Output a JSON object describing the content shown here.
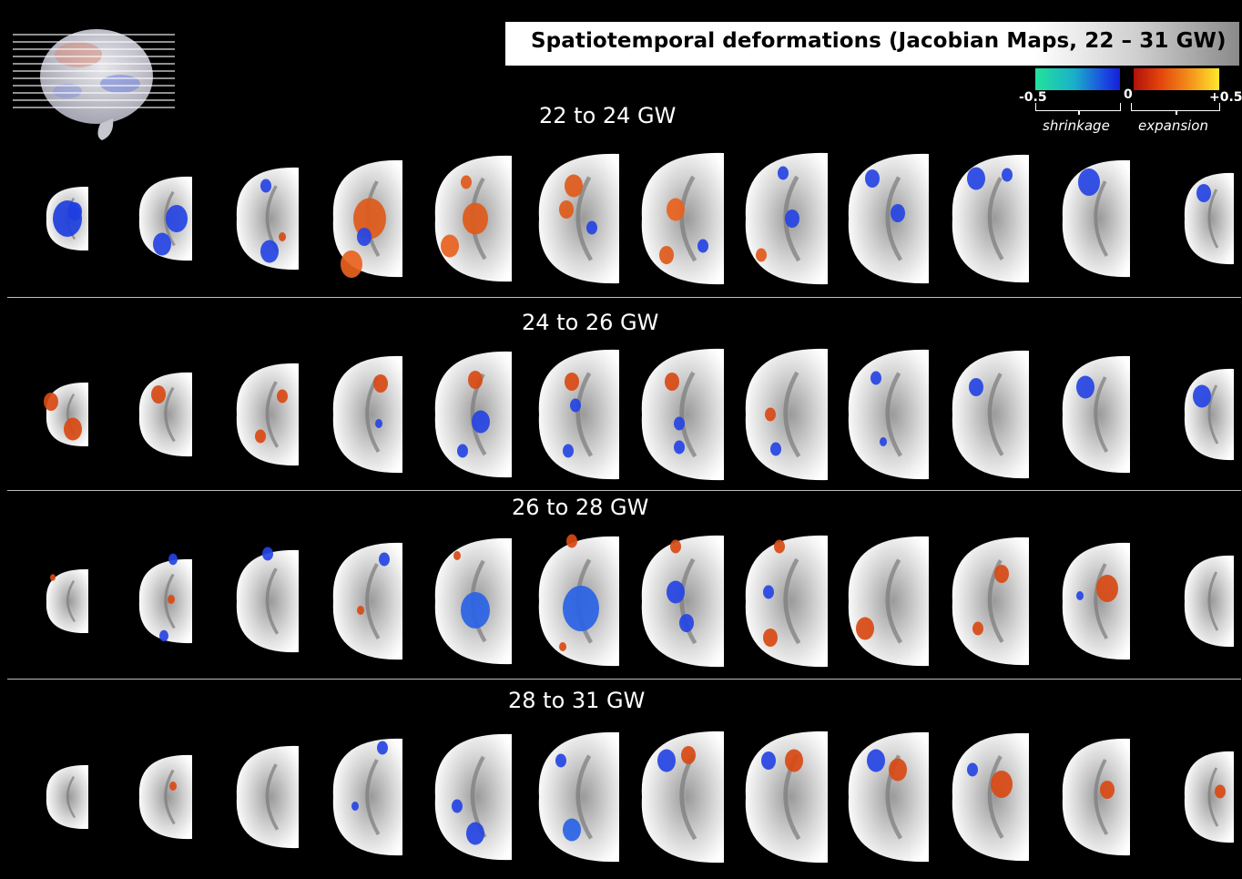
{
  "title": "Spatiotemporal deformations (Jacobian Maps, 22 – 31 GW)",
  "colorbar": {
    "neg_label": "-0.5",
    "zero_label": "0",
    "pos_label": "+0.5",
    "neg_caption": "shrinkage",
    "pos_caption": "expansion",
    "neg_colors": [
      "#22e39a",
      "#1a4ee0",
      "#1520d8"
    ],
    "pos_colors": [
      "#b0120a",
      "#f3901a",
      "#fde82c"
    ]
  },
  "rows": [
    {
      "label": "22 to 24 GW"
    },
    {
      "label": "24 to 26 GW"
    },
    {
      "label": "26 to 28 GW"
    },
    {
      "label": "28 to 31 GW"
    }
  ],
  "slices_per_row": 12,
  "thumbnail_icon": "brain-3d-icon"
}
